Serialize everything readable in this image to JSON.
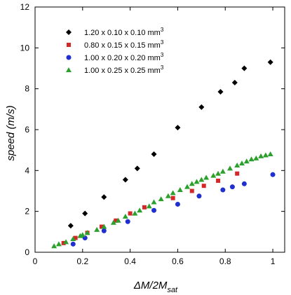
{
  "chart_data": {
    "type": "scatter",
    "title": "",
    "xlabel": {
      "main": "ΔM/2M",
      "sub": "sat"
    },
    "ylabel": "speed (m/s)",
    "xlim": [
      0,
      1.05
    ],
    "ylim": [
      0,
      12
    ],
    "x_ticks": [
      0,
      0.2,
      0.4,
      0.6,
      0.8,
      1
    ],
    "x_tick_labels": [
      "0",
      "0.2",
      "0.4",
      "0.6",
      "0.8",
      "1"
    ],
    "y_ticks": [
      0,
      2,
      4,
      6,
      8,
      10,
      12
    ],
    "y_tick_labels": [
      "0",
      "2",
      "4",
      "6",
      "8",
      "10",
      "12"
    ],
    "grid": false,
    "legend_position": "top-left",
    "series": [
      {
        "name": "1.20 x 0.10 x 0.10 mm",
        "name_sup": "3",
        "marker": "diamond",
        "color": "#000000",
        "x": [
          0.15,
          0.21,
          0.29,
          0.38,
          0.43,
          0.5,
          0.6,
          0.7,
          0.78,
          0.84,
          0.88,
          0.99
        ],
        "y": [
          1.3,
          1.9,
          2.7,
          3.55,
          4.1,
          4.8,
          6.1,
          7.1,
          7.85,
          8.3,
          9.0,
          9.3
        ]
      },
      {
        "name": "0.80 x 0.15 x 0.15 mm",
        "name_sup": "3",
        "marker": "square",
        "color": "#d62728",
        "x": [
          0.12,
          0.17,
          0.22,
          0.28,
          0.34,
          0.4,
          0.46,
          0.58,
          0.66,
          0.71,
          0.77,
          0.85
        ],
        "y": [
          0.45,
          0.7,
          0.95,
          1.25,
          1.55,
          1.9,
          2.2,
          2.65,
          3.0,
          3.25,
          3.5,
          3.85
        ]
      },
      {
        "name": "1.00 x 0.20 x 0.20 mm",
        "name_sup": "3",
        "marker": "circle",
        "color": "#1f2fd0",
        "x": [
          0.16,
          0.21,
          0.29,
          0.39,
          0.5,
          0.6,
          0.69,
          0.79,
          0.83,
          0.88,
          1.0
        ],
        "y": [
          0.4,
          0.7,
          1.05,
          1.5,
          2.05,
          2.35,
          2.75,
          3.05,
          3.2,
          3.35,
          3.8
        ]
      },
      {
        "name": "1.00 x 0.25 x 0.25 mm",
        "name_sup": "3",
        "marker": "triangle",
        "color": "#2ca02c",
        "x": [
          0.08,
          0.1,
          0.13,
          0.16,
          0.19,
          0.2,
          0.22,
          0.26,
          0.29,
          0.33,
          0.35,
          0.38,
          0.42,
          0.44,
          0.48,
          0.5,
          0.53,
          0.56,
          0.58,
          0.61,
          0.64,
          0.66,
          0.68,
          0.7,
          0.72,
          0.75,
          0.77,
          0.79,
          0.82,
          0.85,
          0.87,
          0.89,
          0.91,
          0.93,
          0.95,
          0.97,
          0.99
        ],
        "y": [
          0.3,
          0.4,
          0.5,
          0.65,
          0.8,
          0.85,
          0.95,
          1.1,
          1.25,
          1.45,
          1.55,
          1.75,
          1.9,
          2.05,
          2.25,
          2.45,
          2.6,
          2.75,
          2.9,
          3.05,
          3.2,
          3.35,
          3.45,
          3.55,
          3.65,
          3.75,
          3.85,
          3.95,
          4.1,
          4.25,
          4.35,
          4.45,
          4.55,
          4.6,
          4.7,
          4.75,
          4.8
        ]
      }
    ]
  }
}
